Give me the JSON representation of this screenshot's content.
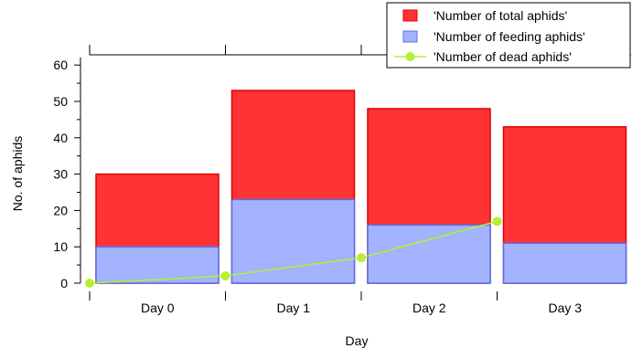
{
  "chart_data": {
    "type": "bar",
    "categories": [
      "Day 0",
      "Day 1",
      "Day 2",
      "Day 3"
    ],
    "series": [
      {
        "name": "'Number of  total aphids'",
        "type": "bar",
        "values": [
          30,
          53,
          48,
          43
        ],
        "color": "#ff3333",
        "edge": "#e00000"
      },
      {
        "name": "'Number of feeding aphids'",
        "type": "bar",
        "values": [
          10,
          23,
          16,
          11
        ],
        "color": "#a3b3ff",
        "edge": "#5a6fe8"
      },
      {
        "name": "'Number of dead aphids'",
        "type": "line",
        "values": [
          0,
          2,
          7,
          17
        ],
        "color": "#b5f032"
      }
    ],
    "xlabel": "Day",
    "ylabel": "No. of aphids",
    "yticks": [
      0,
      10,
      20,
      30,
      40,
      50,
      60
    ],
    "ylim": [
      -2,
      65
    ],
    "grid": false,
    "legend_position": "top-right"
  }
}
